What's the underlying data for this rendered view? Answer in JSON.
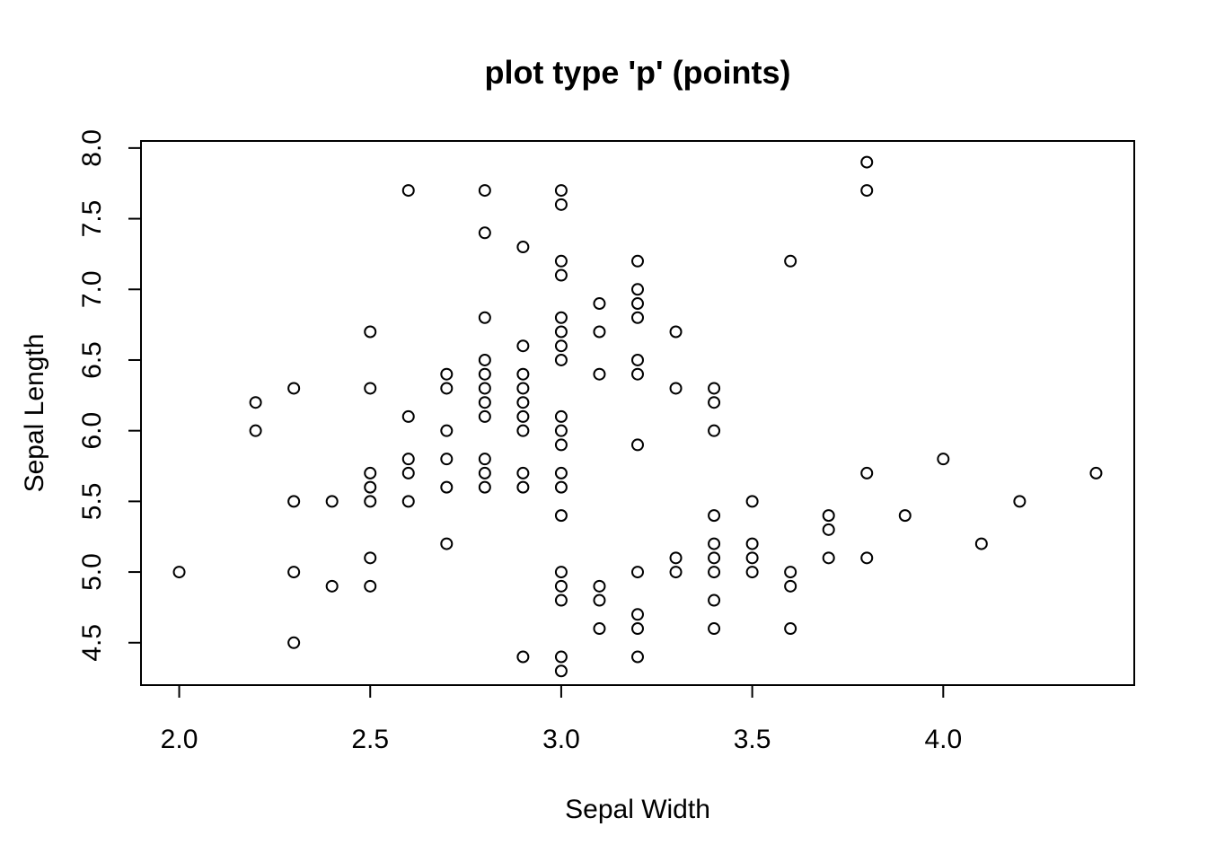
{
  "chart_data": {
    "type": "scatter",
    "title": "plot type 'p' (points)",
    "xlabel": "Sepal Width",
    "ylabel": "Sepal Length",
    "xlim": [
      1.9,
      4.5
    ],
    "ylim": [
      4.2,
      8.05
    ],
    "xticks": [
      2.0,
      2.5,
      3.0,
      3.5,
      4.0
    ],
    "xtick_labels": [
      "2.0",
      "2.5",
      "3.0",
      "3.5",
      "4.0"
    ],
    "yticks": [
      4.5,
      5.0,
      5.5,
      6.0,
      6.5,
      7.0,
      7.5,
      8.0
    ],
    "ytick_labels": [
      "4.5",
      "5.0",
      "5.5",
      "6.0",
      "6.5",
      "7.0",
      "7.5",
      "8.0"
    ],
    "marker": "open-circle",
    "color": "#000000",
    "grid": false,
    "points": [
      [
        2.0,
        5.0
      ],
      [
        2.2,
        6.0
      ],
      [
        2.2,
        6.2
      ],
      [
        2.3,
        4.5
      ],
      [
        2.3,
        5.0
      ],
      [
        2.3,
        5.5
      ],
      [
        2.3,
        6.3
      ],
      [
        2.4,
        4.9
      ],
      [
        2.4,
        5.5
      ],
      [
        2.5,
        4.9
      ],
      [
        2.5,
        5.1
      ],
      [
        2.5,
        5.5
      ],
      [
        2.5,
        5.6
      ],
      [
        2.5,
        5.7
      ],
      [
        2.5,
        6.3
      ],
      [
        2.5,
        6.7
      ],
      [
        2.6,
        5.5
      ],
      [
        2.6,
        5.7
      ],
      [
        2.6,
        5.8
      ],
      [
        2.6,
        6.1
      ],
      [
        2.6,
        7.7
      ],
      [
        2.7,
        5.2
      ],
      [
        2.7,
        5.6
      ],
      [
        2.7,
        5.8
      ],
      [
        2.7,
        6.0
      ],
      [
        2.7,
        6.3
      ],
      [
        2.7,
        6.4
      ],
      [
        2.8,
        5.6
      ],
      [
        2.8,
        5.7
      ],
      [
        2.8,
        5.8
      ],
      [
        2.8,
        6.1
      ],
      [
        2.8,
        6.2
      ],
      [
        2.8,
        6.3
      ],
      [
        2.8,
        6.4
      ],
      [
        2.8,
        6.5
      ],
      [
        2.8,
        6.8
      ],
      [
        2.8,
        7.4
      ],
      [
        2.8,
        7.7
      ],
      [
        2.9,
        4.4
      ],
      [
        2.9,
        5.6
      ],
      [
        2.9,
        5.7
      ],
      [
        2.9,
        6.0
      ],
      [
        2.9,
        6.1
      ],
      [
        2.9,
        6.2
      ],
      [
        2.9,
        6.3
      ],
      [
        2.9,
        6.4
      ],
      [
        2.9,
        6.6
      ],
      [
        2.9,
        7.3
      ],
      [
        3.0,
        4.3
      ],
      [
        3.0,
        4.4
      ],
      [
        3.0,
        4.8
      ],
      [
        3.0,
        4.9
      ],
      [
        3.0,
        5.0
      ],
      [
        3.0,
        5.4
      ],
      [
        3.0,
        5.6
      ],
      [
        3.0,
        5.7
      ],
      [
        3.0,
        5.9
      ],
      [
        3.0,
        6.0
      ],
      [
        3.0,
        6.1
      ],
      [
        3.0,
        6.5
      ],
      [
        3.0,
        6.6
      ],
      [
        3.0,
        6.7
      ],
      [
        3.0,
        6.8
      ],
      [
        3.0,
        7.1
      ],
      [
        3.0,
        7.2
      ],
      [
        3.0,
        7.6
      ],
      [
        3.0,
        7.7
      ],
      [
        3.1,
        4.6
      ],
      [
        3.1,
        4.8
      ],
      [
        3.1,
        4.9
      ],
      [
        3.1,
        6.4
      ],
      [
        3.1,
        6.7
      ],
      [
        3.1,
        6.9
      ],
      [
        3.2,
        4.4
      ],
      [
        3.2,
        4.6
      ],
      [
        3.2,
        4.7
      ],
      [
        3.2,
        5.0
      ],
      [
        3.2,
        5.9
      ],
      [
        3.2,
        6.4
      ],
      [
        3.2,
        6.5
      ],
      [
        3.2,
        6.8
      ],
      [
        3.2,
        6.9
      ],
      [
        3.2,
        7.0
      ],
      [
        3.2,
        7.2
      ],
      [
        3.3,
        5.0
      ],
      [
        3.3,
        5.1
      ],
      [
        3.3,
        6.3
      ],
      [
        3.3,
        6.7
      ],
      [
        3.4,
        4.6
      ],
      [
        3.4,
        4.8
      ],
      [
        3.4,
        5.0
      ],
      [
        3.4,
        5.1
      ],
      [
        3.4,
        5.2
      ],
      [
        3.4,
        5.4
      ],
      [
        3.4,
        6.0
      ],
      [
        3.4,
        6.2
      ],
      [
        3.4,
        6.3
      ],
      [
        3.5,
        5.0
      ],
      [
        3.5,
        5.1
      ],
      [
        3.5,
        5.2
      ],
      [
        3.5,
        5.5
      ],
      [
        3.6,
        4.6
      ],
      [
        3.6,
        4.9
      ],
      [
        3.6,
        5.0
      ],
      [
        3.6,
        7.2
      ],
      [
        3.7,
        5.1
      ],
      [
        3.7,
        5.3
      ],
      [
        3.7,
        5.4
      ],
      [
        3.8,
        5.1
      ],
      [
        3.8,
        5.7
      ],
      [
        3.8,
        7.7
      ],
      [
        3.8,
        7.9
      ],
      [
        3.9,
        5.4
      ],
      [
        4.0,
        5.8
      ],
      [
        4.1,
        5.2
      ],
      [
        4.2,
        5.5
      ],
      [
        4.4,
        5.7
      ]
    ]
  }
}
